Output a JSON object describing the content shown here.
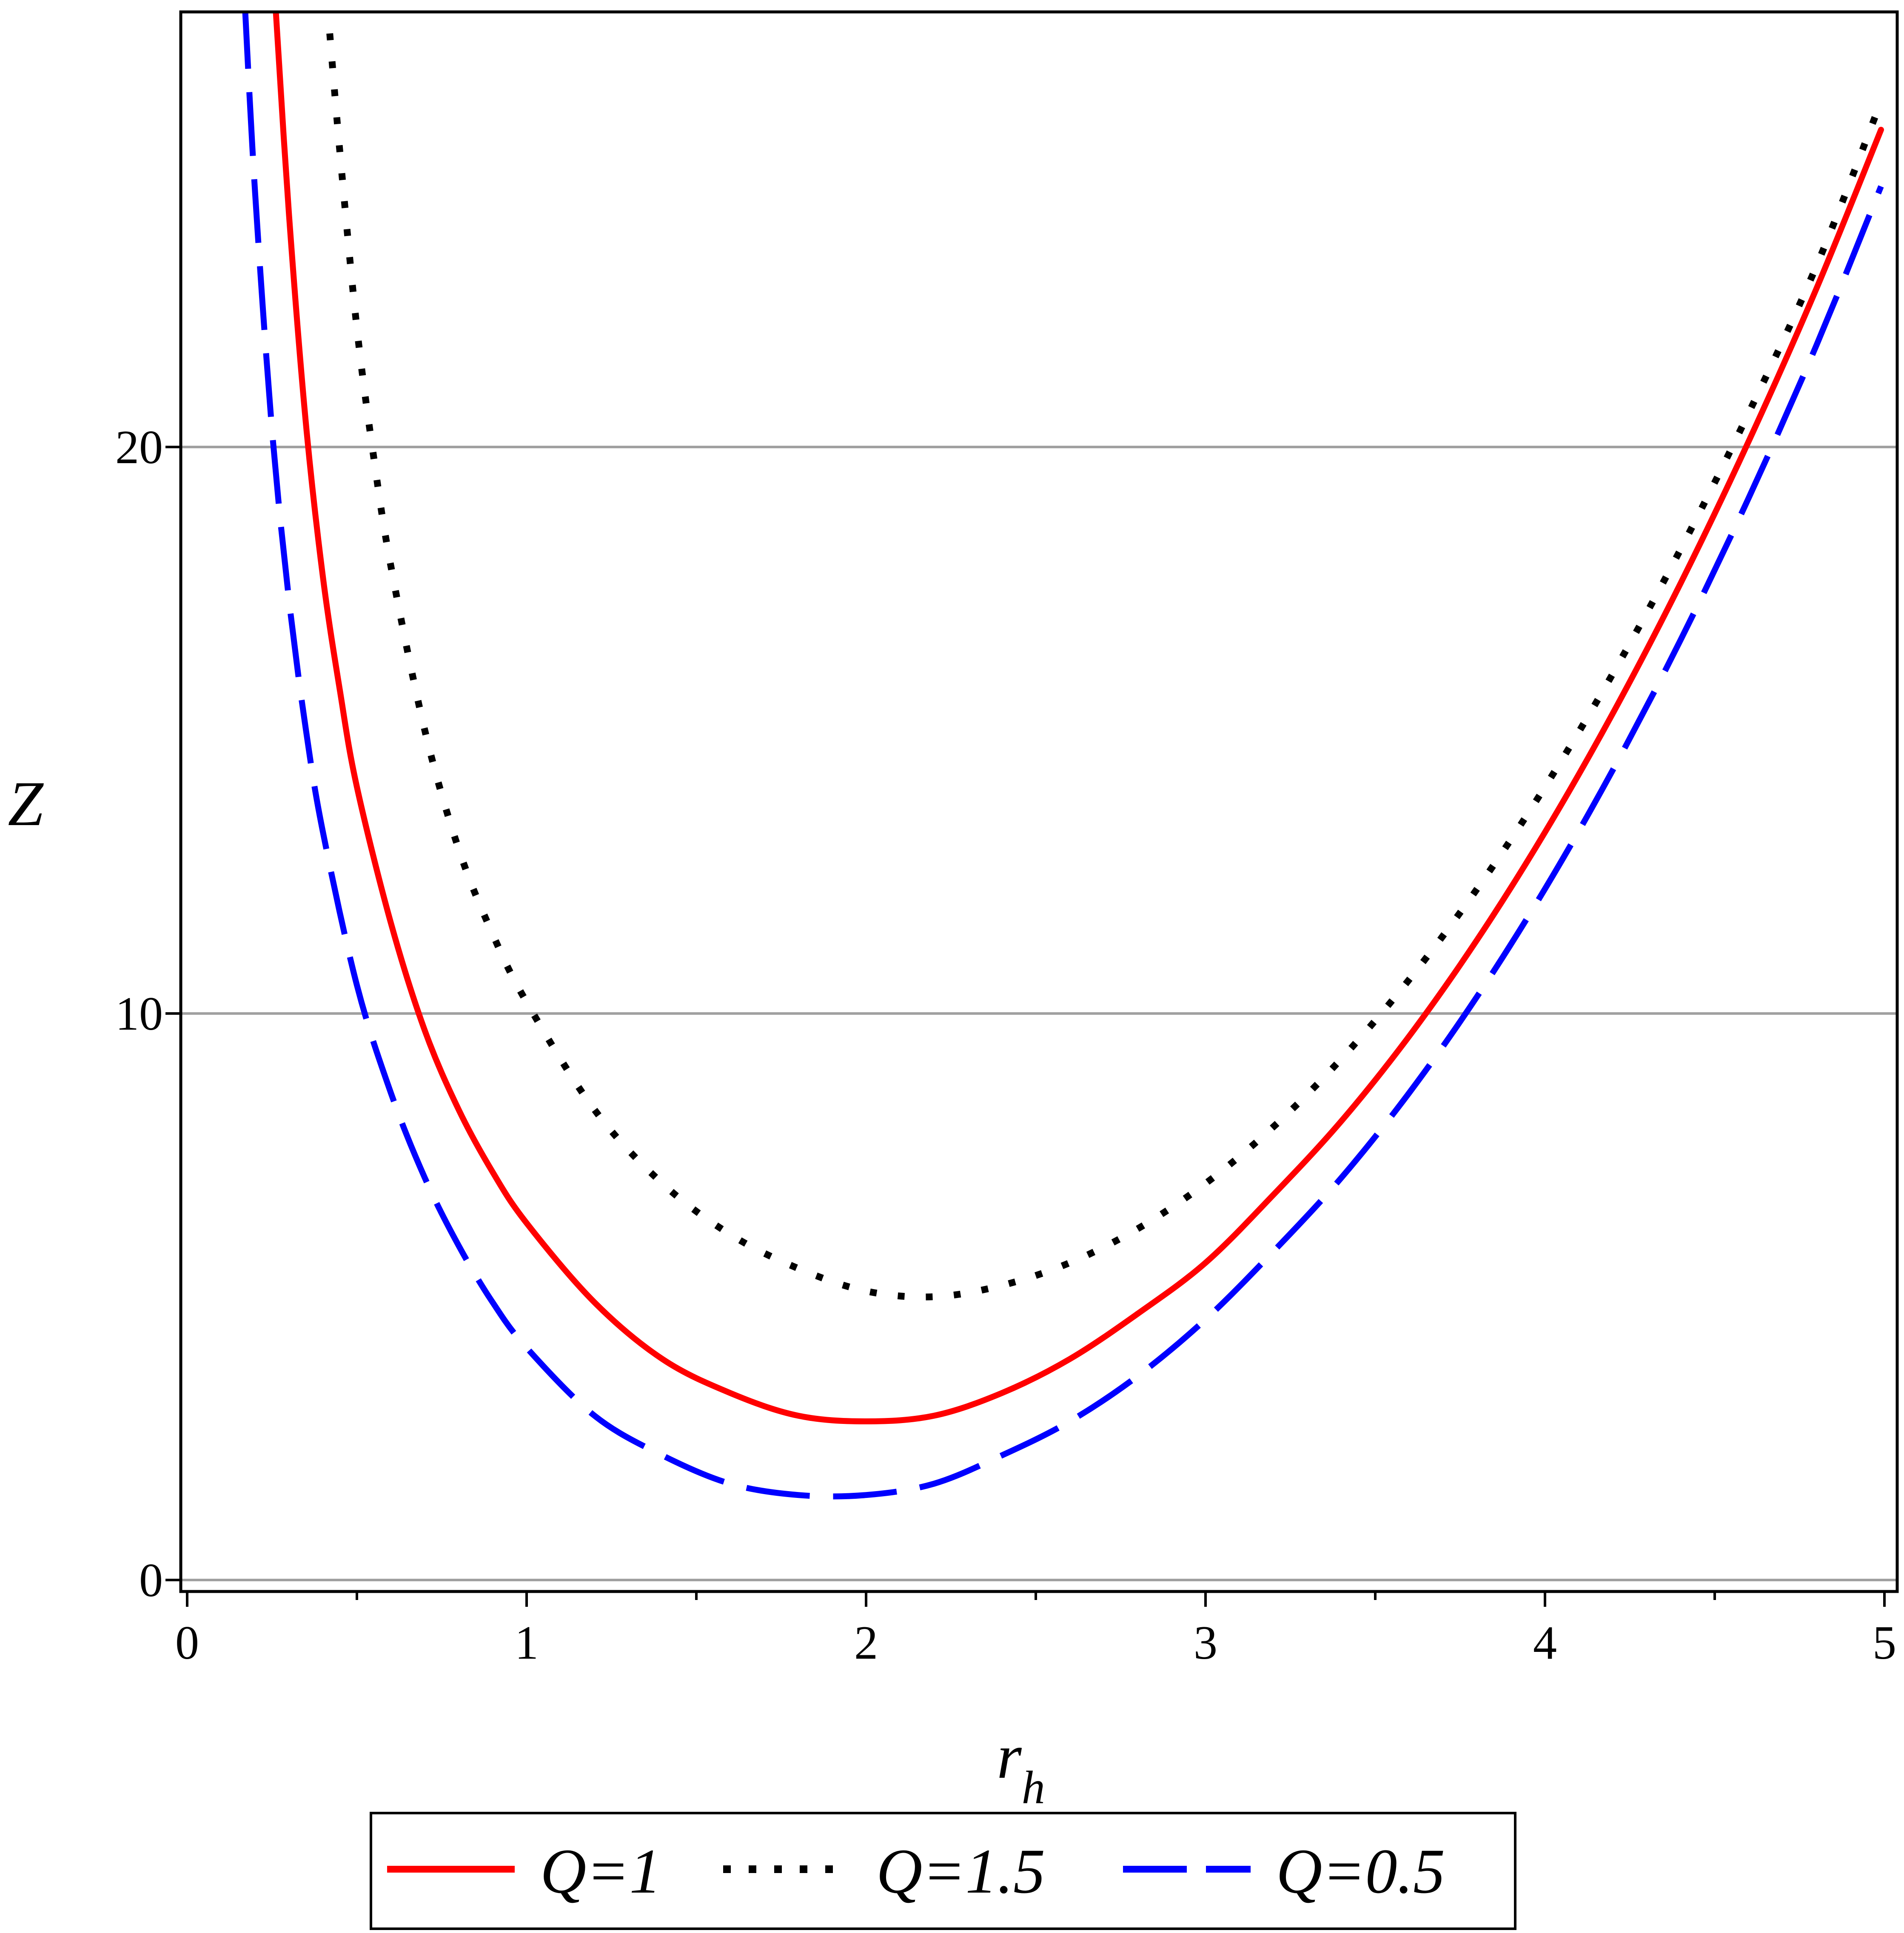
{
  "chart_data": {
    "type": "line",
    "title": "",
    "xlabel": "r",
    "xlabel_subscript": "h",
    "ylabel": "Z",
    "xlim": [
      0,
      5
    ],
    "ylim": [
      -0.2,
      27.8
    ],
    "x_ticks": [
      0,
      1,
      2,
      3,
      4,
      5
    ],
    "x_tick_labels": [
      "0",
      "1",
      "2",
      "3",
      "4",
      "5"
    ],
    "x_minor_ticks": [
      0.5,
      1.5,
      2.5,
      3.5,
      4.5
    ],
    "y_ticks": [
      0,
      10,
      20
    ],
    "y_tick_labels": [
      "0",
      "10",
      "20"
    ],
    "grid": "horizontal",
    "legend_position": "bottom-outside",
    "series": [
      {
        "name": "Q=1",
        "color": "#ff0000",
        "style": "solid",
        "x": [
          0.26,
          0.3,
          0.35,
          0.4,
          0.45,
          0.5,
          0.6,
          0.7,
          0.8,
          0.9,
          1.0,
          1.2,
          1.4,
          1.6,
          1.8,
          2.0,
          2.2,
          2.4,
          2.6,
          2.8,
          3.0,
          3.2,
          3.4,
          3.6,
          3.8,
          4.0,
          4.2,
          4.4,
          4.6,
          4.8,
          4.99
        ],
        "values": [
          27.8,
          24.1,
          20.4,
          17.7,
          15.7,
          14.0,
          11.6,
          9.7,
          8.3,
          7.2,
          6.3,
          4.9,
          3.9,
          3.3,
          2.9,
          2.8,
          2.9,
          3.3,
          3.9,
          4.7,
          5.6,
          6.8,
          8.1,
          9.6,
          11.3,
          13.2,
          15.3,
          17.6,
          20.1,
          22.8,
          25.6
        ]
      },
      {
        "name": "Q=1.5",
        "color": "#000000",
        "style": "dotted",
        "x": [
          0.42,
          0.45,
          0.5,
          0.55,
          0.6,
          0.7,
          0.8,
          0.9,
          1.0,
          1.2,
          1.4,
          1.6,
          1.8,
          2.0,
          2.2,
          2.4,
          2.6,
          2.8,
          3.0,
          3.2,
          3.4,
          3.6,
          3.8,
          4.0,
          4.2,
          4.4,
          4.6,
          4.8,
          4.99
        ],
        "values": [
          27.3,
          25.2,
          22.1,
          19.8,
          17.9,
          15.0,
          12.9,
          11.4,
          10.2,
          8.3,
          7.0,
          6.1,
          5.5,
          5.1,
          5.0,
          5.2,
          5.6,
          6.2,
          7.0,
          8.0,
          9.2,
          10.6,
          12.2,
          14.0,
          16.0,
          18.2,
          20.6,
          23.2,
          26.1
        ]
      },
      {
        "name": "Q=0.5",
        "color": "#0000ff",
        "style": "dashed",
        "x": [
          0.17,
          0.2,
          0.25,
          0.3,
          0.35,
          0.4,
          0.5,
          0.6,
          0.7,
          0.8,
          0.9,
          1.0,
          1.2,
          1.4,
          1.6,
          1.8,
          2.0,
          2.2,
          2.4,
          2.6,
          2.8,
          3.0,
          3.2,
          3.4,
          3.6,
          3.8,
          4.0,
          4.2,
          4.4,
          4.6,
          4.8,
          4.99
        ],
        "values": [
          27.8,
          24.5,
          20.3,
          17.3,
          15.0,
          13.2,
          10.5,
          8.6,
          7.1,
          5.9,
          4.9,
          4.1,
          2.9,
          2.2,
          1.7,
          1.5,
          1.5,
          1.7,
          2.2,
          2.8,
          3.6,
          4.6,
          5.8,
          7.1,
          8.6,
          10.3,
          12.2,
          14.3,
          16.6,
          19.1,
          21.8,
          24.6
        ]
      }
    ]
  }
}
